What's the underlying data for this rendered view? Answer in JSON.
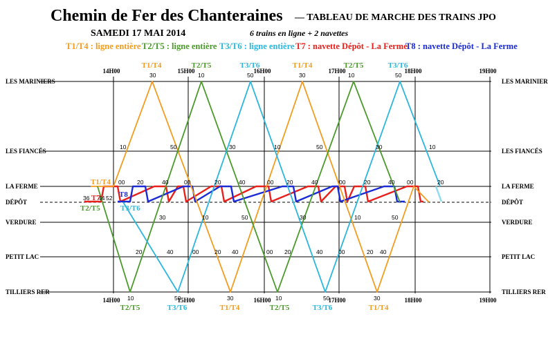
{
  "title": {
    "main": "Chemin de Fer des Chanteraines",
    "sub": "— TABLEAU DE MARCHE DES TRAINS JPO",
    "date": "SAMEDI 17 MAI 2014",
    "subtitle": "6 trains en ligne + 2 navettes"
  },
  "legend": [
    {
      "text": "T1/T4 : ligne entière",
      "color": "#f39c1e"
    },
    {
      "text": "T2/T5 : ligne entière",
      "color": "#4a9a2a"
    },
    {
      "text": "T3/T6 : ligne entière",
      "color": "#29b6df"
    },
    {
      "text": "T7 : navette Dépôt - La Ferme",
      "color": "#e8201c"
    },
    {
      "text": "T8 : navette Dépôt - La Ferme",
      "color": "#1a2bd6"
    }
  ],
  "stations": [
    {
      "name": "LES MARINIERS"
    },
    {
      "name": "LES FIANCÉS"
    },
    {
      "name": "LA FERME"
    },
    {
      "name": "DÉPÔT"
    },
    {
      "name": "VERDURE"
    },
    {
      "name": "PETIT LAC"
    },
    {
      "name": "TILLIERS RER"
    }
  ],
  "hours": [
    "14H00",
    "15H00",
    "16H00",
    "17H00",
    "18H00",
    "19H00"
  ],
  "colors": {
    "t1": "#f39c1e",
    "t2": "#4a9a2a",
    "t3": "#29b6df",
    "t7": "#e8201c",
    "t8": "#1a2bd6",
    "grid": "#000000"
  },
  "train_labels": {
    "top": [
      "T1/T4",
      "T2/T5",
      "T3/T6",
      "T1/T4",
      "T2/T5",
      "T3/T6"
    ],
    "bottom": [
      "T2/T5",
      "T3/T6",
      "T1/T4",
      "T2/T5",
      "T3/T6",
      "T1/T4"
    ],
    "left_t1": "T1/T4",
    "left_t7": "T7",
    "left_t8": "T8",
    "left_t2": "T2/T5",
    "left_t3": "T3/T6"
  },
  "minute_labels": {
    "mariniers": [
      "30",
      "10",
      "50",
      "30",
      "10",
      "50"
    ],
    "fiances": [
      "10",
      "50",
      "30",
      "10",
      "50",
      "30",
      "10"
    ],
    "ferme": [
      "00",
      "20",
      "40",
      "00",
      "20",
      "40",
      "00",
      "20",
      "40",
      "00",
      "20",
      "40",
      "00",
      "20"
    ],
    "depot": [
      "36",
      "44",
      "52"
    ],
    "verdure": [
      "30",
      "10",
      "50",
      "30",
      "10",
      "50"
    ],
    "petitlac": [
      "20",
      "40",
      "00",
      "20",
      "40",
      "00",
      "20",
      "40",
      "00",
      "20",
      "40"
    ],
    "tilliers": [
      "10",
      "50",
      "30",
      "10",
      "50",
      "30"
    ]
  }
}
